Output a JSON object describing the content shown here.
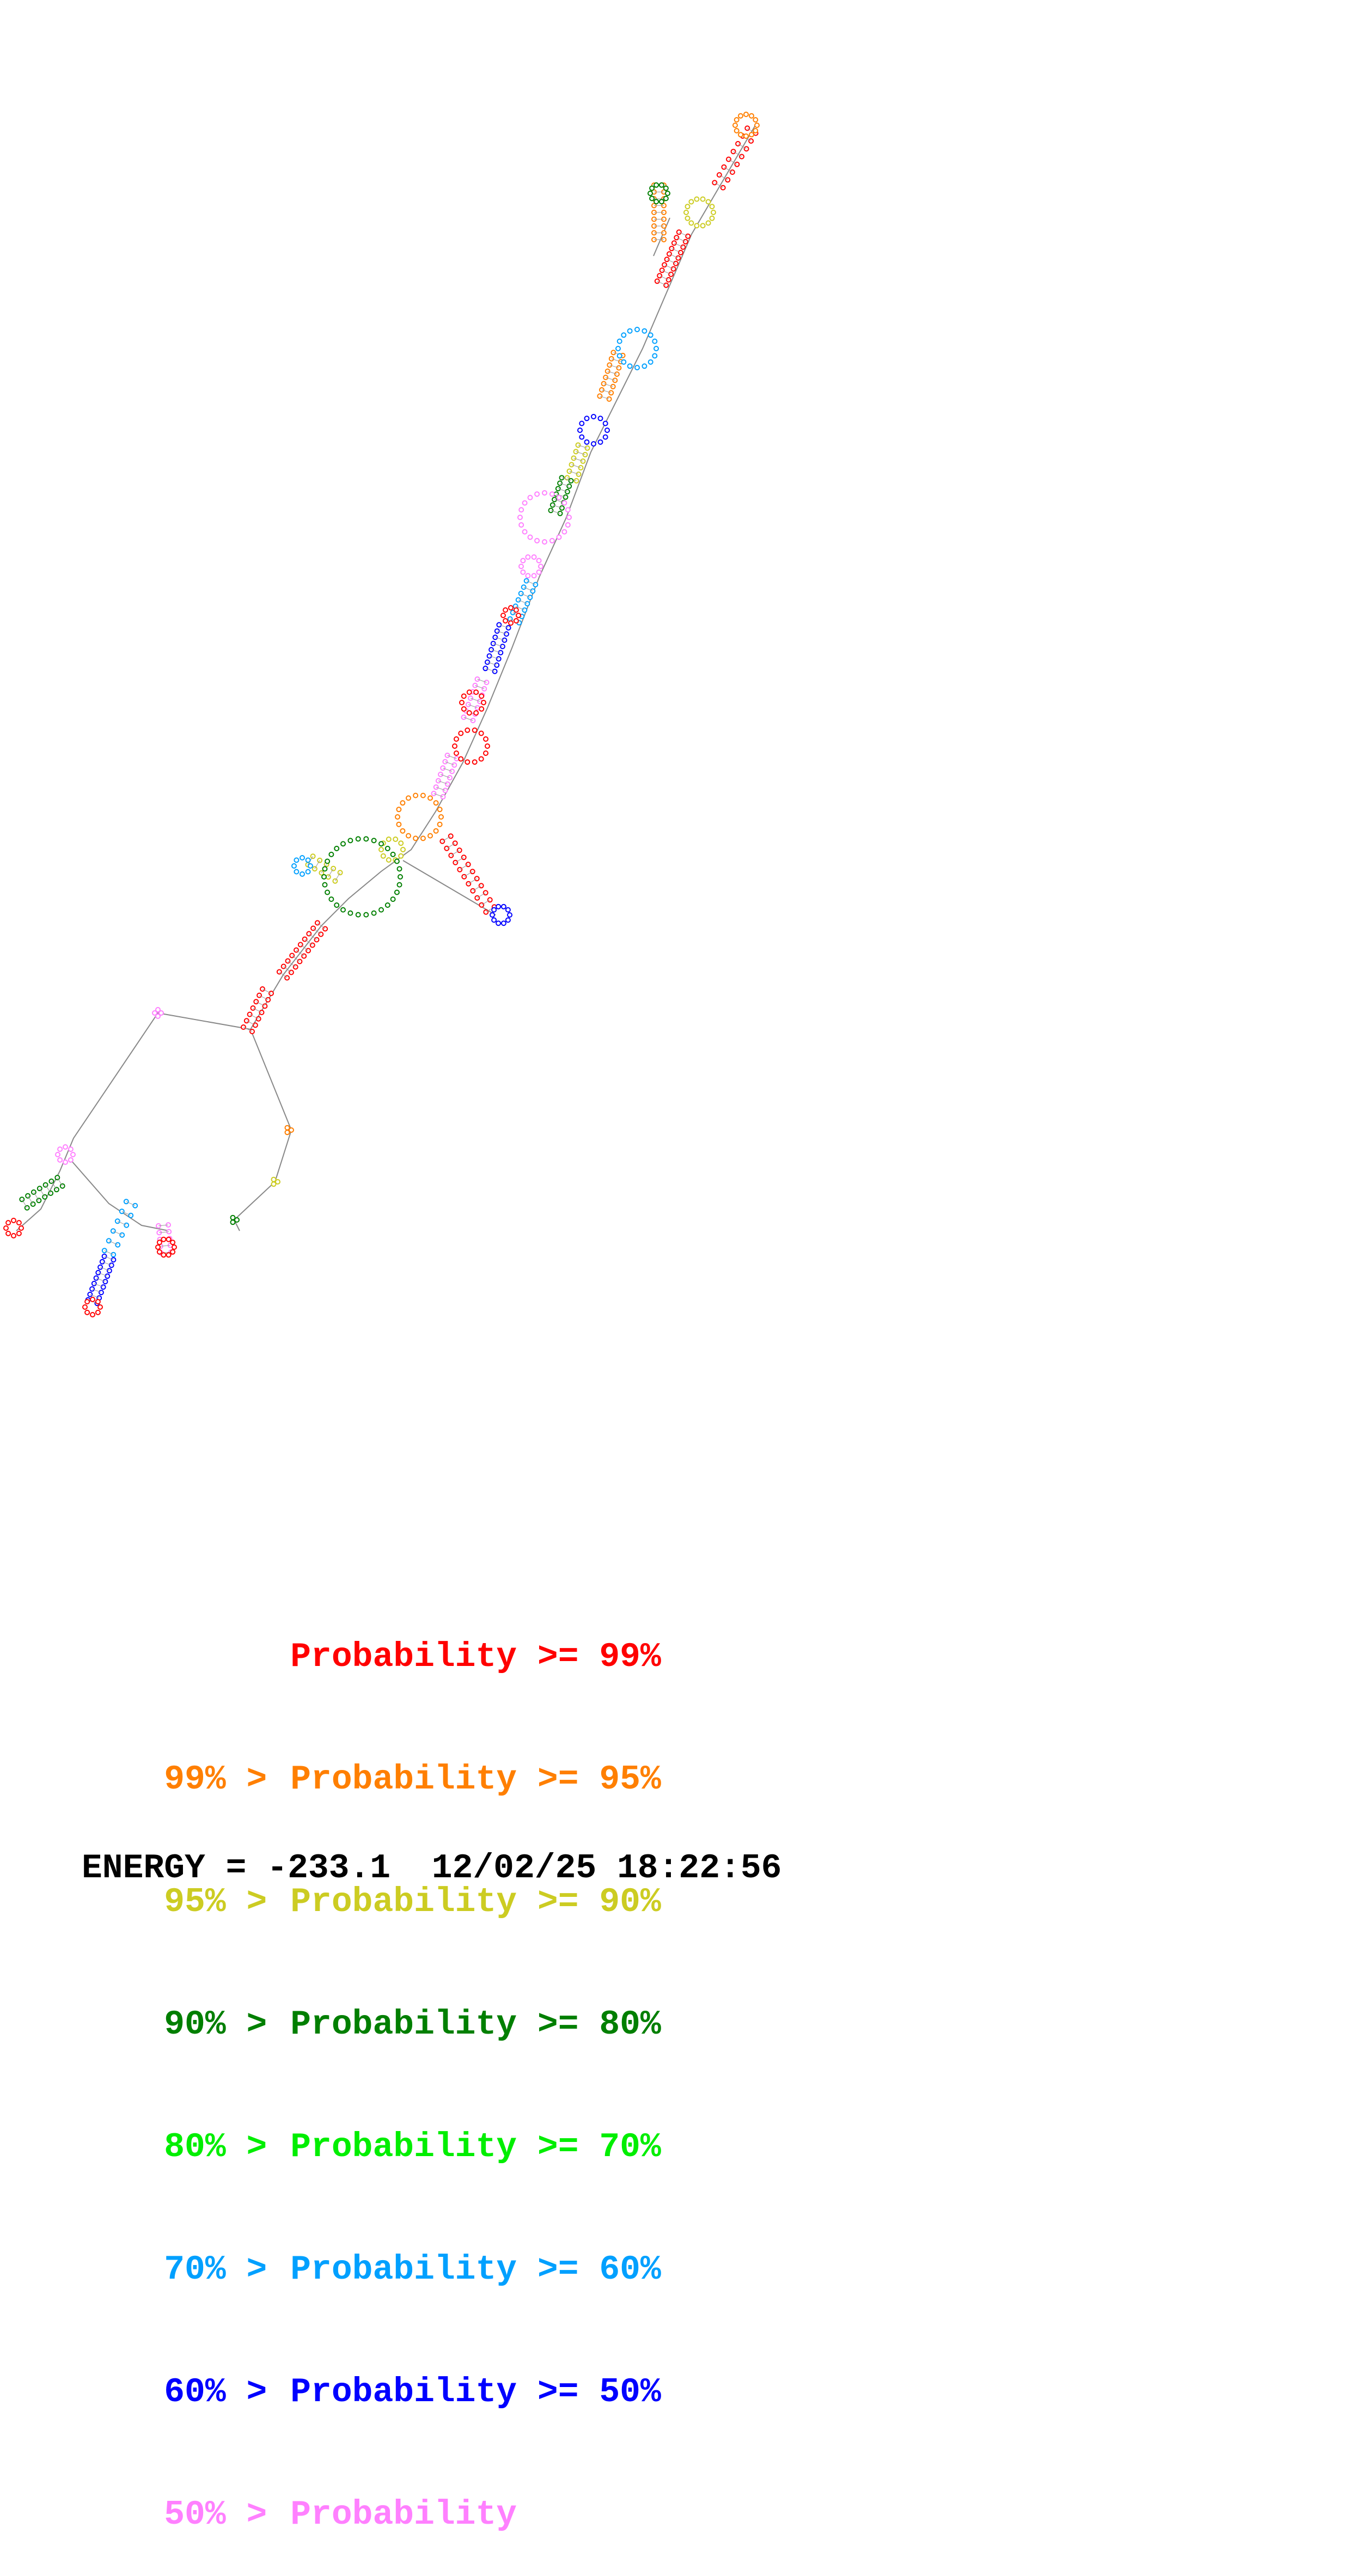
{
  "legend": [
    {
      "prefix": "",
      "text": "Probability >= 99%",
      "color": "#ff0000"
    },
    {
      "prefix": "99% > ",
      "text": "Probability >= 95%",
      "color": "#ff7f00"
    },
    {
      "prefix": "95% > ",
      "text": "Probability >= 90%",
      "color": "#cccc22"
    },
    {
      "prefix": "90% > ",
      "text": "Probability >= 80%",
      "color": "#007f00"
    },
    {
      "prefix": "80% > ",
      "text": "Probability >= 70%",
      "color": "#00ee00"
    },
    {
      "prefix": "70% > ",
      "text": "Probability >= 60%",
      "color": "#00a0ff"
    },
    {
      "prefix": "60% > ",
      "text": "Probability >= 50%",
      "color": "#0000ff"
    },
    {
      "prefix": "50% > ",
      "text": "Probability",
      "color": "#ff80ff"
    }
  ],
  "footer": {
    "energy_label": "ENERGY = ",
    "energy_value": "-233.1",
    "date": "12/02/25",
    "time": "18:22:56"
  }
}
